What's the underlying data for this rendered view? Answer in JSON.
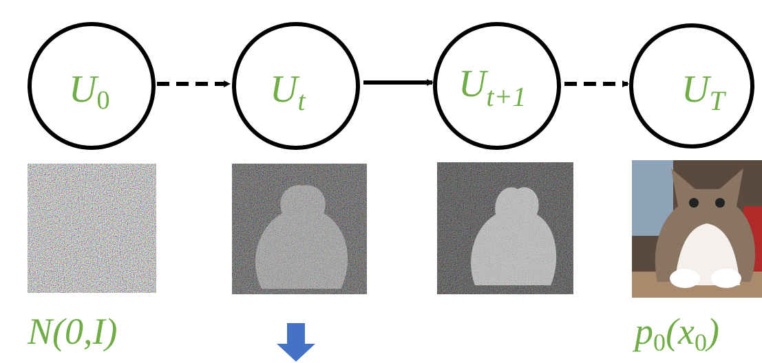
{
  "nodes": [
    {
      "label": "U",
      "subscript": "0"
    },
    {
      "label": "U",
      "subscript": "t"
    },
    {
      "label": "U",
      "subscript": "t+1"
    },
    {
      "label": "U",
      "subscript": "T"
    }
  ],
  "captions": [
    {
      "parts": [
        "N(0,I)"
      ]
    },
    {
      "parts": [
        "p",
        "0",
        "(x",
        "0",
        ")"
      ]
    }
  ]
}
